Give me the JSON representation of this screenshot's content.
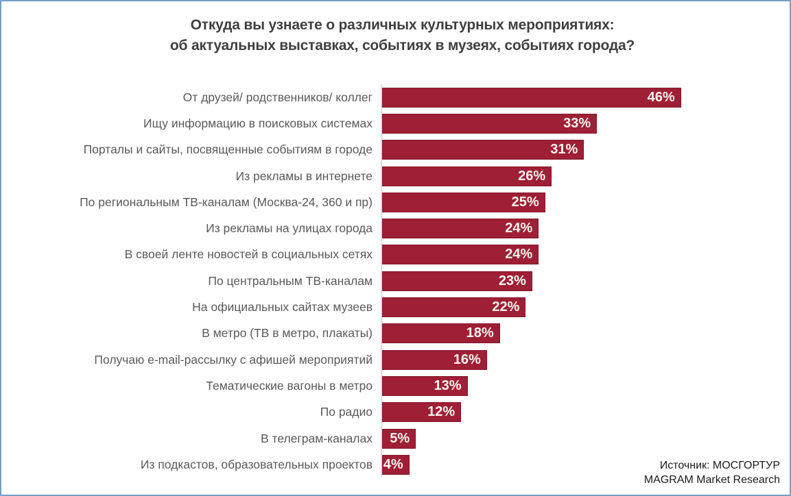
{
  "title": {
    "line1": "Откуда вы узнаете о различных культурных мероприятиях:",
    "line2": "об актуальных выставках, событиях в музеях, событиях города?"
  },
  "chart_data": {
    "type": "bar",
    "orientation": "horizontal",
    "title": "Откуда вы узнаете о различных культурных мероприятиях: об актуальных выставках, событиях в музеях, событиях города?",
    "categories": [
      "От друзей/ родственников/ коллег",
      "Ищу информацию в поисковых системах",
      "Порталы и сайты, посвященные событиям в городе",
      "Из рекламы в интернете",
      "По региональным ТВ-каналам (Москва-24, 360 и пр)",
      "Из рекламы на улицах города",
      "В своей ленте новостей в социальных сетях",
      "По центральным ТВ-каналам",
      "На официальных сайтах музеев",
      "В метро (ТВ в метро, плакаты)",
      "Получаю e-mail-рассылку с афишей мероприятий",
      "Тематические вагоны в метро",
      "По радио",
      "В телеграм-каналах",
      "Из подкастов, образовательных проектов"
    ],
    "values": [
      46,
      33,
      31,
      26,
      25,
      24,
      24,
      23,
      22,
      18,
      16,
      13,
      12,
      5,
      4
    ],
    "value_suffix": "%",
    "xlim": [
      0,
      63
    ],
    "grid": false,
    "legend": false,
    "value_label_position": "inside-end"
  },
  "source": {
    "line1": "Источник: МОСГОРТУР",
    "line2": "MAGRAM Market Research"
  },
  "colors": {
    "frame_border": "#74A1C6",
    "bar_fill": "#9E1F36",
    "bar_border": "#84172A",
    "value_text": "#FBF6EE",
    "category_text": "#595959",
    "title_text": "#3F3F3F",
    "source_text": "#1A1A1A",
    "axis_line": "#DCDCDC"
  }
}
